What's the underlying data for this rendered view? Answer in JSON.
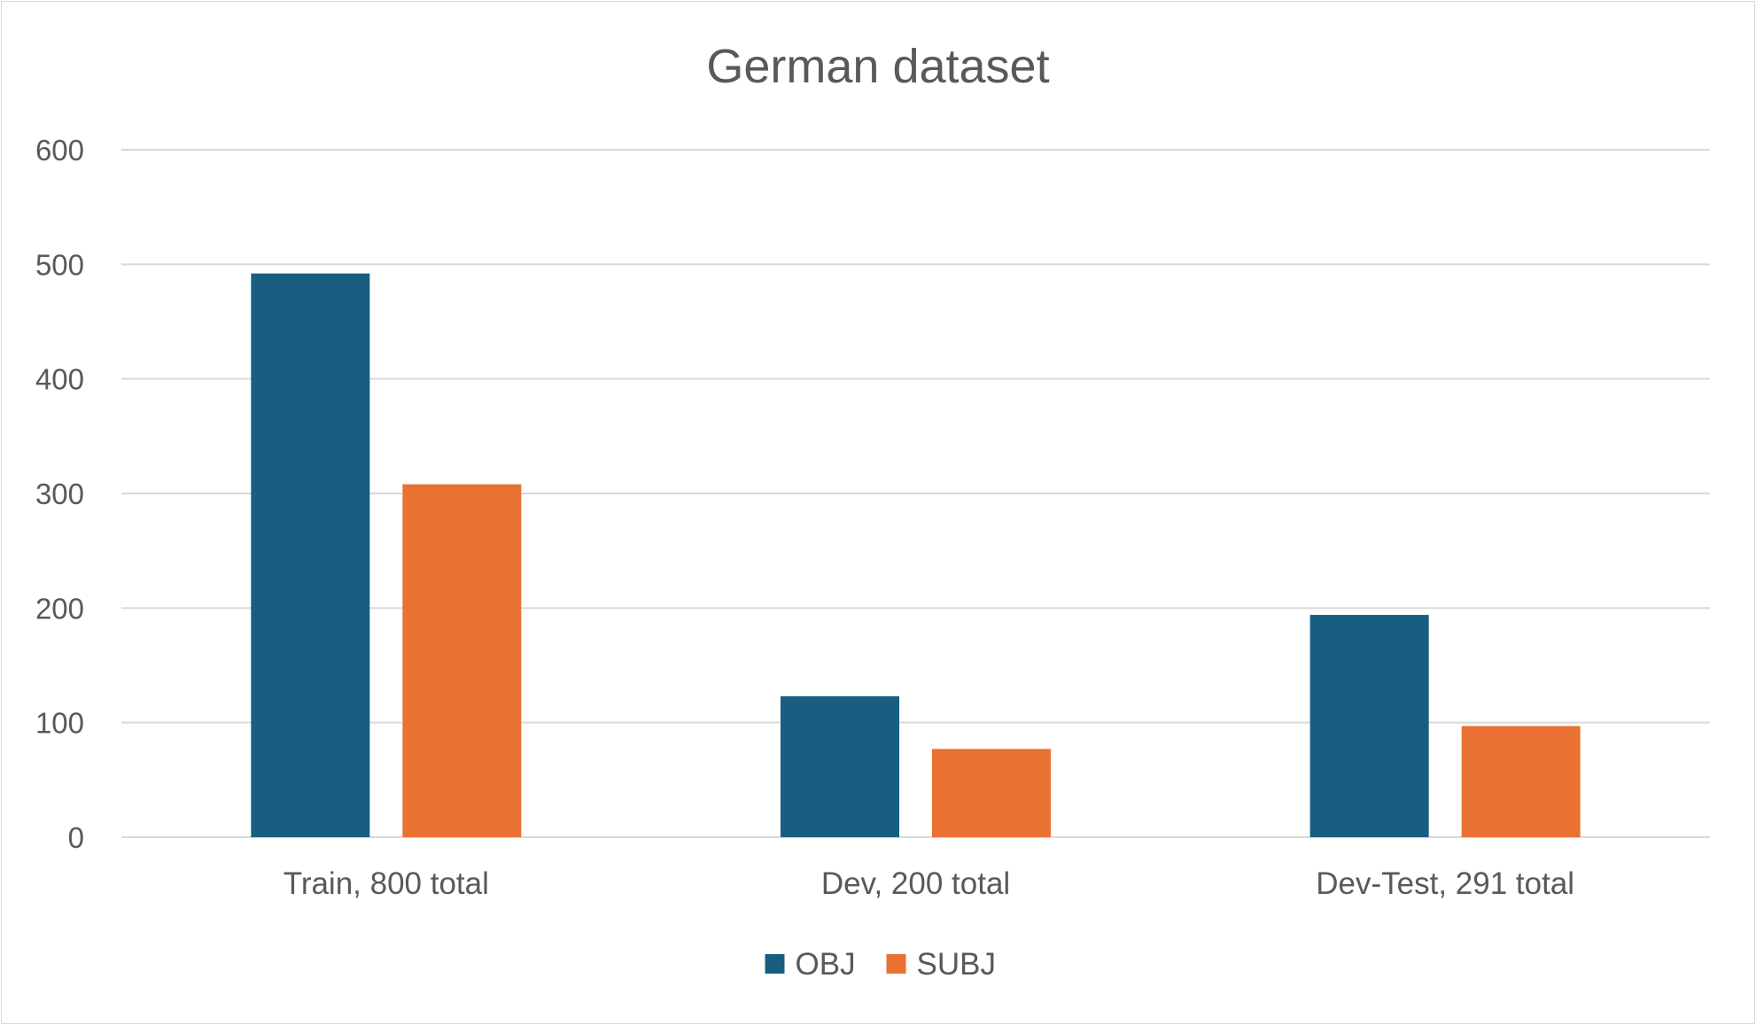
{
  "chart_data": {
    "type": "bar",
    "title": "German dataset",
    "categories": [
      "Train, 800 total",
      "Dev, 200 total",
      "Dev-Test, 291 total"
    ],
    "series": [
      {
        "name": "OBJ",
        "values": [
          492,
          123,
          194
        ],
        "color": "#175E80"
      },
      {
        "name": "SUBJ",
        "values": [
          308,
          77,
          97
        ],
        "color": "#E97132"
      }
    ],
    "ylim": [
      0,
      600
    ],
    "yticks": [
      0,
      100,
      200,
      300,
      400,
      500,
      600
    ],
    "grid": true,
    "legend": "bottom"
  }
}
